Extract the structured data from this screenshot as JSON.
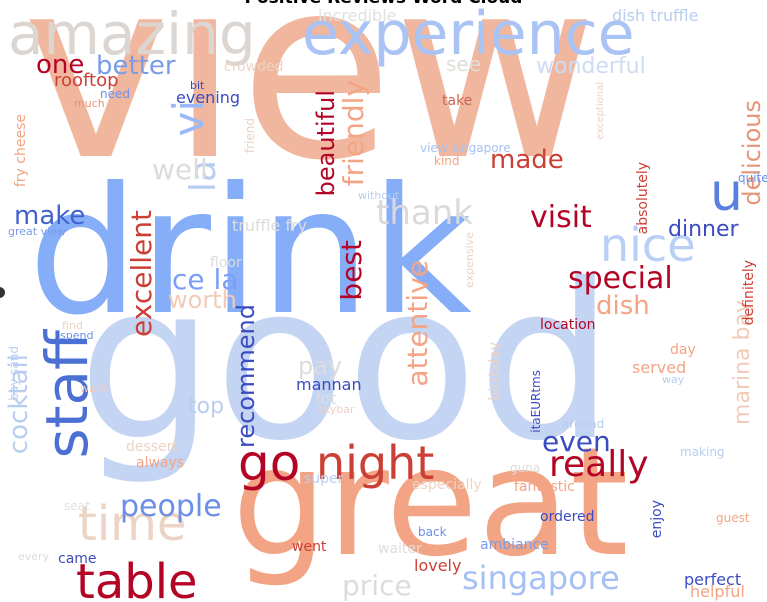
{
  "title": "Positive Reviews Word Cloud",
  "words": [
    {
      "text": "view",
      "color": "#f0b79e"
    },
    {
      "text": "good",
      "color": "#c4d5f3"
    },
    {
      "text": "great",
      "color": "#f3a484"
    },
    {
      "text": "drink",
      "color": "#86aef8"
    },
    {
      "text": "experience",
      "color": "#a9c3f4"
    },
    {
      "text": "amazing",
      "color": "#dcd6d2"
    },
    {
      "text": "table",
      "color": "#b40426"
    },
    {
      "text": "night",
      "color": "#cc3f35"
    },
    {
      "text": "time",
      "color": "#ecd3c5"
    },
    {
      "text": "staff",
      "color": "#4b6fd3"
    },
    {
      "text": "nice",
      "color": "#b9cff6"
    },
    {
      "text": "really",
      "color": "#b40426"
    },
    {
      "text": "go",
      "color": "#b40426"
    },
    {
      "text": "u",
      "color": "#5b7fe1"
    },
    {
      "text": "singapore",
      "color": "#a5c0f2"
    },
    {
      "text": "vi",
      "color": "#9ab9f6"
    },
    {
      "text": "la",
      "color": "#b8cdef"
    },
    {
      "text": "thank",
      "color": "#dad9db"
    },
    {
      "text": "visit",
      "color": "#b40426"
    },
    {
      "text": "special",
      "color": "#b40426"
    },
    {
      "text": "dinner",
      "color": "#3b4cc0"
    },
    {
      "text": "dish",
      "color": "#f3a484"
    },
    {
      "text": "make",
      "color": "#4162cf"
    },
    {
      "text": "well",
      "color": "#dcdcdc"
    },
    {
      "text": "made",
      "color": "#cc3f35"
    },
    {
      "text": "ce la",
      "color": "#7b9ff9"
    },
    {
      "text": "worth",
      "color": "#f2cbb8"
    },
    {
      "text": "one",
      "color": "#b40426"
    },
    {
      "text": "better",
      "color": "#7a9ce8"
    },
    {
      "text": "friendly",
      "color": "#f3a484"
    },
    {
      "text": "beautiful",
      "color": "#b40426"
    },
    {
      "text": "delicious",
      "color": "#e69578"
    },
    {
      "text": "excellent",
      "color": "#cc3f35"
    },
    {
      "text": "best",
      "color": "#b40426"
    },
    {
      "text": "attentive",
      "color": "#f3a484"
    },
    {
      "text": "recommend",
      "color": "#3b4cc0"
    },
    {
      "text": "marina bay",
      "color": "#f2cbb8"
    },
    {
      "text": "people",
      "color": "#6b8ee8"
    },
    {
      "text": "even",
      "color": "#3b4cc0"
    },
    {
      "text": "cocktail",
      "color": "#b8cdef"
    },
    {
      "text": "price",
      "color": "#dcdcdc"
    },
    {
      "text": "wonderful",
      "color": "#cddcf4"
    },
    {
      "text": "see",
      "color": "#e0dcd8"
    },
    {
      "text": "rooftop",
      "color": "#cc3f35"
    },
    {
      "text": "evening",
      "color": "#3b4cc0"
    },
    {
      "text": "crowded",
      "color": "#ecd3c5"
    },
    {
      "text": "dish truffle",
      "color": "#b8cdef"
    },
    {
      "text": "incredible",
      "color": "#e0e0e0"
    },
    {
      "text": "take",
      "color": "#cc6650"
    },
    {
      "text": "need",
      "color": "#6b8ee8"
    },
    {
      "text": "bit",
      "color": "#3b4cc0"
    },
    {
      "text": "much",
      "color": "#e69578"
    },
    {
      "text": "fry cheese",
      "color": "#f3a484"
    },
    {
      "text": "friend",
      "color": "#ecd3c5"
    },
    {
      "text": "view singapore",
      "color": "#a5c0f2"
    },
    {
      "text": "kind",
      "color": "#f3a484"
    },
    {
      "text": "around",
      "color": "#b8cdef"
    },
    {
      "text": "absolutely",
      "color": "#cc3f35"
    },
    {
      "text": "quite",
      "color": "#6b8ee8"
    },
    {
      "text": "exceptional",
      "color": "#ecd3c5"
    },
    {
      "text": "without",
      "color": "#b8cdef"
    },
    {
      "text": "great view",
      "color": "#7a9ce8"
    },
    {
      "text": "truffle fry",
      "color": "#dcdcdc"
    },
    {
      "text": "floor",
      "color": "#dcdcdc"
    },
    {
      "text": "expensive",
      "color": "#ecd3c5"
    },
    {
      "text": "location",
      "color": "#b40426"
    },
    {
      "text": "definitely",
      "color": "#cc3f35"
    },
    {
      "text": "find",
      "color": "#ecd3c5"
    },
    {
      "text": "spend",
      "color": "#6b8ee8"
    },
    {
      "text": "bay sand",
      "color": "#b8cdef"
    },
    {
      "text": "want",
      "color": "#f2cbb8"
    },
    {
      "text": "pay",
      "color": "#dcdcdc"
    },
    {
      "text": "mannan",
      "color": "#3b4cc0"
    },
    {
      "text": "lot",
      "color": "#dcdcdc"
    },
    {
      "text": "skybar",
      "color": "#ecd3c5"
    },
    {
      "text": "top",
      "color": "#b8cdef"
    },
    {
      "text": "birthday",
      "color": "#ecd3c5"
    },
    {
      "text": "itaEURtms",
      "color": "#3b4cc0"
    },
    {
      "text": "day",
      "color": "#f3a484"
    },
    {
      "text": "way",
      "color": "#b8cdef"
    },
    {
      "text": "served",
      "color": "#f3a484"
    },
    {
      "text": "dessert",
      "color": "#ecd3c5"
    },
    {
      "text": "always",
      "color": "#f3a484"
    },
    {
      "text": "super",
      "color": "#b8cdef"
    },
    {
      "text": "especially",
      "color": "#ecd3c5"
    },
    {
      "text": "guna",
      "color": "#dcdcdc"
    },
    {
      "text": "fantastic",
      "color": "#f3a484"
    },
    {
      "text": "making",
      "color": "#b8cdef"
    },
    {
      "text": "seat",
      "color": "#e0e0e0"
    },
    {
      "text": "ordered",
      "color": "#3b4cc0"
    },
    {
      "text": "guest",
      "color": "#f3a484"
    },
    {
      "text": "enjoy",
      "color": "#3b4cc0"
    },
    {
      "text": "back",
      "color": "#6b8ee8"
    },
    {
      "text": "waiter",
      "color": "#e0dcd8"
    },
    {
      "text": "went",
      "color": "#cc3f35"
    },
    {
      "text": "ambiance",
      "color": "#7a9ce8"
    },
    {
      "text": "every",
      "color": "#dcdcdc"
    },
    {
      "text": "came",
      "color": "#3b4cc0"
    },
    {
      "text": "lovely",
      "color": "#cc3f35"
    },
    {
      "text": "perfect",
      "color": "#3b4cc0"
    },
    {
      "text": "helpful",
      "color": "#f3a484"
    }
  ]
}
